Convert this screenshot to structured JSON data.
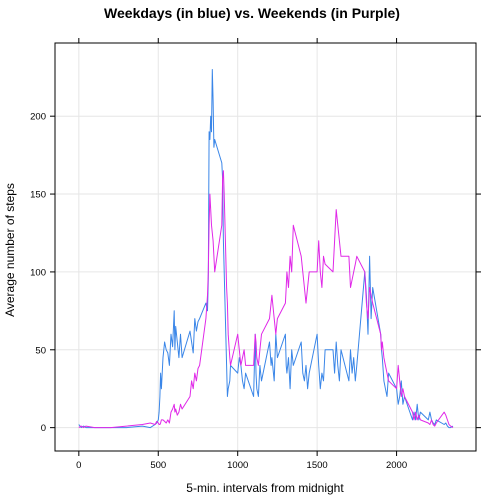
{
  "chart_data": {
    "type": "line",
    "title": "Weekdays (in blue) vs. Weekends (in Purple)",
    "xlabel": "5-min. intervals from midnight",
    "ylabel": "Average number of steps",
    "xlim": [
      -150,
      2500
    ],
    "ylim": [
      -15,
      247
    ],
    "x_ticks": [
      0,
      500,
      1000,
      1500,
      2000
    ],
    "y_ticks": [
      0,
      50,
      100,
      150,
      200
    ],
    "grid": true,
    "series": [
      {
        "color": "#3a86e8",
        "points": [
          [
            0,
            2
          ],
          [
            15,
            0
          ],
          [
            30,
            1
          ],
          [
            45,
            0
          ],
          [
            100,
            0
          ],
          [
            200,
            0
          ],
          [
            300,
            0
          ],
          [
            400,
            1
          ],
          [
            450,
            0
          ],
          [
            480,
            2
          ],
          [
            490,
            3
          ],
          [
            500,
            5
          ],
          [
            505,
            10
          ],
          [
            510,
            20
          ],
          [
            515,
            35
          ],
          [
            520,
            25
          ],
          [
            530,
            45
          ],
          [
            540,
            55
          ],
          [
            550,
            50
          ],
          [
            560,
            48
          ],
          [
            570,
            40
          ],
          [
            580,
            60
          ],
          [
            590,
            52
          ],
          [
            600,
            75
          ],
          [
            605,
            50
          ],
          [
            610,
            65
          ],
          [
            620,
            55
          ],
          [
            630,
            45
          ],
          [
            640,
            60
          ],
          [
            650,
            45
          ],
          [
            700,
            62
          ],
          [
            710,
            55
          ],
          [
            720,
            48
          ],
          [
            730,
            70
          ],
          [
            740,
            62
          ],
          [
            750,
            68
          ],
          [
            760,
            70
          ],
          [
            800,
            80
          ],
          [
            810,
            75
          ],
          [
            815,
            95
          ],
          [
            820,
            190
          ],
          [
            825,
            185
          ],
          [
            830,
            200
          ],
          [
            835,
            190
          ],
          [
            840,
            230
          ],
          [
            845,
            210
          ],
          [
            850,
            180
          ],
          [
            855,
            185
          ],
          [
            900,
            170
          ],
          [
            905,
            160
          ],
          [
            910,
            120
          ],
          [
            915,
            100
          ],
          [
            920,
            80
          ],
          [
            925,
            60
          ],
          [
            930,
            40
          ],
          [
            935,
            20
          ],
          [
            940,
            25
          ],
          [
            950,
            30
          ],
          [
            955,
            40
          ],
          [
            1000,
            35
          ],
          [
            1010,
            45
          ],
          [
            1020,
            40
          ],
          [
            1030,
            30
          ],
          [
            1040,
            25
          ],
          [
            1050,
            35
          ],
          [
            1100,
            20
          ],
          [
            1105,
            40
          ],
          [
            1110,
            60
          ],
          [
            1115,
            35
          ],
          [
            1120,
            25
          ],
          [
            1130,
            20
          ],
          [
            1140,
            40
          ],
          [
            1150,
            30
          ],
          [
            1200,
            55
          ],
          [
            1210,
            40
          ],
          [
            1215,
            45
          ],
          [
            1230,
            30
          ],
          [
            1240,
            60
          ],
          [
            1250,
            45
          ],
          [
            1300,
            60
          ],
          [
            1305,
            40
          ],
          [
            1310,
            35
          ],
          [
            1320,
            45
          ],
          [
            1330,
            25
          ],
          [
            1340,
            50
          ],
          [
            1350,
            40
          ],
          [
            1400,
            55
          ],
          [
            1410,
            35
          ],
          [
            1420,
            30
          ],
          [
            1430,
            40
          ],
          [
            1440,
            25
          ],
          [
            1450,
            35
          ],
          [
            1500,
            60
          ],
          [
            1505,
            50
          ],
          [
            1510,
            40
          ],
          [
            1520,
            25
          ],
          [
            1530,
            35
          ],
          [
            1540,
            30
          ],
          [
            1550,
            50
          ],
          [
            1600,
            50
          ],
          [
            1610,
            35
          ],
          [
            1620,
            55
          ],
          [
            1630,
            40
          ],
          [
            1640,
            30
          ],
          [
            1650,
            50
          ],
          [
            1700,
            30
          ],
          [
            1705,
            40
          ],
          [
            1710,
            50
          ],
          [
            1720,
            35
          ],
          [
            1730,
            45
          ],
          [
            1740,
            30
          ],
          [
            1750,
            40
          ],
          [
            1800,
            100
          ],
          [
            1810,
            85
          ],
          [
            1820,
            60
          ],
          [
            1830,
            110
          ],
          [
            1840,
            70
          ],
          [
            1850,
            90
          ],
          [
            1900,
            60
          ],
          [
            1905,
            50
          ],
          [
            1910,
            45
          ],
          [
            1920,
            30
          ],
          [
            1930,
            25
          ],
          [
            1940,
            20
          ],
          [
            1950,
            35
          ],
          [
            2000,
            25
          ],
          [
            2010,
            15
          ],
          [
            2020,
            20
          ],
          [
            2030,
            30
          ],
          [
            2040,
            15
          ],
          [
            2050,
            20
          ],
          [
            2100,
            5
          ],
          [
            2110,
            10
          ],
          [
            2120,
            5
          ],
          [
            2130,
            15
          ],
          [
            2140,
            5
          ],
          [
            2150,
            10
          ],
          [
            2200,
            5
          ],
          [
            2210,
            10
          ],
          [
            2220,
            5
          ],
          [
            2230,
            3
          ],
          [
            2240,
            2
          ],
          [
            2250,
            5
          ],
          [
            2300,
            2
          ],
          [
            2310,
            3
          ],
          [
            2320,
            1
          ],
          [
            2330,
            0
          ],
          [
            2340,
            0
          ],
          [
            2355,
            1
          ]
        ]
      },
      {
        "color": "#e028e8",
        "points": [
          [
            0,
            0
          ],
          [
            15,
            1
          ],
          [
            30,
            0
          ],
          [
            45,
            1
          ],
          [
            100,
            0
          ],
          [
            200,
            0
          ],
          [
            300,
            1
          ],
          [
            400,
            2
          ],
          [
            450,
            3
          ],
          [
            480,
            2
          ],
          [
            490,
            4
          ],
          [
            500,
            3
          ],
          [
            505,
            2
          ],
          [
            510,
            2
          ],
          [
            515,
            3
          ],
          [
            520,
            5
          ],
          [
            530,
            5
          ],
          [
            540,
            4
          ],
          [
            550,
            3
          ],
          [
            560,
            5
          ],
          [
            570,
            3
          ],
          [
            580,
            10
          ],
          [
            590,
            12
          ],
          [
            600,
            15
          ],
          [
            605,
            10
          ],
          [
            610,
            12
          ],
          [
            620,
            8
          ],
          [
            630,
            10
          ],
          [
            640,
            15
          ],
          [
            650,
            12
          ],
          [
            700,
            20
          ],
          [
            710,
            30
          ],
          [
            720,
            25
          ],
          [
            730,
            35
          ],
          [
            740,
            30
          ],
          [
            750,
            38
          ],
          [
            760,
            40
          ],
          [
            800,
            70
          ],
          [
            810,
            85
          ],
          [
            815,
            100
          ],
          [
            820,
            130
          ],
          [
            825,
            150
          ],
          [
            830,
            140
          ],
          [
            835,
            130
          ],
          [
            840,
            125
          ],
          [
            845,
            120
          ],
          [
            850,
            110
          ],
          [
            855,
            100
          ],
          [
            900,
            130
          ],
          [
            905,
            160
          ],
          [
            910,
            165
          ],
          [
            915,
            150
          ],
          [
            920,
            130
          ],
          [
            925,
            110
          ],
          [
            930,
            90
          ],
          [
            935,
            80
          ],
          [
            940,
            60
          ],
          [
            950,
            45
          ],
          [
            955,
            40
          ],
          [
            1000,
            60
          ],
          [
            1010,
            50
          ],
          [
            1020,
            40
          ],
          [
            1030,
            45
          ],
          [
            1040,
            50
          ],
          [
            1050,
            40
          ],
          [
            1100,
            40
          ],
          [
            1105,
            50
          ],
          [
            1110,
            60
          ],
          [
            1115,
            55
          ],
          [
            1120,
            45
          ],
          [
            1130,
            40
          ],
          [
            1140,
            50
          ],
          [
            1150,
            60
          ],
          [
            1200,
            70
          ],
          [
            1210,
            80
          ],
          [
            1215,
            85
          ],
          [
            1230,
            70
          ],
          [
            1240,
            60
          ],
          [
            1250,
            70
          ],
          [
            1300,
            80
          ],
          [
            1305,
            90
          ],
          [
            1310,
            100
          ],
          [
            1320,
            90
          ],
          [
            1330,
            110
          ],
          [
            1340,
            100
          ],
          [
            1350,
            130
          ],
          [
            1400,
            110
          ],
          [
            1410,
            100
          ],
          [
            1420,
            90
          ],
          [
            1430,
            80
          ],
          [
            1440,
            90
          ],
          [
            1450,
            100
          ],
          [
            1500,
            100
          ],
          [
            1505,
            110
          ],
          [
            1510,
            120
          ],
          [
            1520,
            100
          ],
          [
            1530,
            90
          ],
          [
            1540,
            110
          ],
          [
            1550,
            105
          ],
          [
            1600,
            100
          ],
          [
            1610,
            120
          ],
          [
            1620,
            140
          ],
          [
            1630,
            130
          ],
          [
            1640,
            120
          ],
          [
            1650,
            110
          ],
          [
            1700,
            110
          ],
          [
            1705,
            100
          ],
          [
            1710,
            90
          ],
          [
            1720,
            95
          ],
          [
            1730,
            100
          ],
          [
            1740,
            105
          ],
          [
            1750,
            110
          ],
          [
            1800,
            100
          ],
          [
            1810,
            80
          ],
          [
            1820,
            70
          ],
          [
            1830,
            90
          ],
          [
            1840,
            85
          ],
          [
            1850,
            80
          ],
          [
            1900,
            60
          ],
          [
            1905,
            50
          ],
          [
            1910,
            55
          ],
          [
            1920,
            45
          ],
          [
            1930,
            40
          ],
          [
            1940,
            35
          ],
          [
            1950,
            30
          ],
          [
            2000,
            25
          ],
          [
            2010,
            40
          ],
          [
            2020,
            30
          ],
          [
            2030,
            20
          ],
          [
            2040,
            25
          ],
          [
            2050,
            20
          ],
          [
            2100,
            10
          ],
          [
            2110,
            5
          ],
          [
            2120,
            10
          ],
          [
            2130,
            5
          ],
          [
            2140,
            8
          ],
          [
            2150,
            5
          ],
          [
            2200,
            3
          ],
          [
            2210,
            2
          ],
          [
            2220,
            5
          ],
          [
            2230,
            2
          ],
          [
            2240,
            1
          ],
          [
            2250,
            3
          ],
          [
            2300,
            10
          ],
          [
            2310,
            8
          ],
          [
            2320,
            5
          ],
          [
            2330,
            2
          ],
          [
            2340,
            1
          ],
          [
            2355,
            0
          ]
        ]
      }
    ]
  }
}
